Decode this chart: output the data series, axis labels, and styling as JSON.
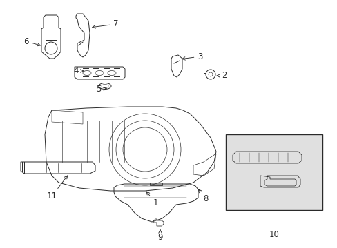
{
  "bg_color": "#ffffff",
  "line_color": "#2a2a2a",
  "figsize": [
    4.89,
    3.6
  ],
  "dpi": 100,
  "box10_bg": "#e8e8e8"
}
